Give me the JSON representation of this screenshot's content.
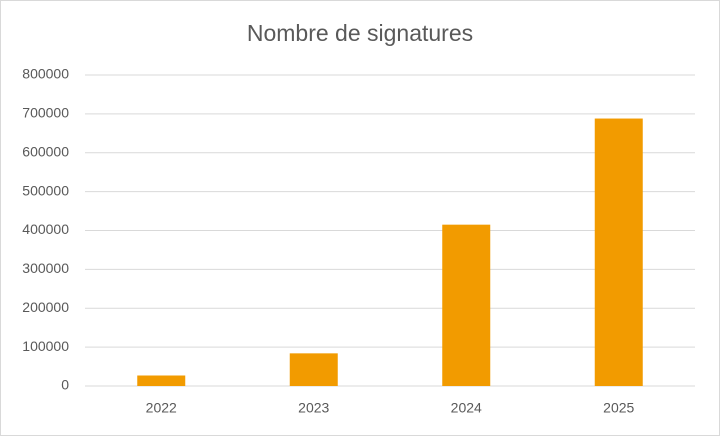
{
  "chart_data": {
    "type": "bar",
    "title": "Nombre de signatures",
    "categories": [
      "2022",
      "2023",
      "2024",
      "2025"
    ],
    "values": [
      27000,
      84000,
      415000,
      688000
    ],
    "color": "#f29b00",
    "ylim": [
      0,
      800000
    ],
    "yticks": [
      0,
      100000,
      200000,
      300000,
      400000,
      500000,
      600000,
      700000,
      800000
    ],
    "grid": true
  }
}
